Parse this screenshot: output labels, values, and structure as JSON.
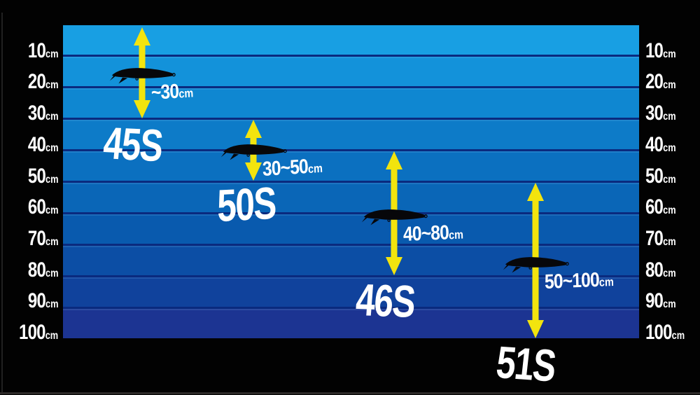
{
  "chart_data": {
    "type": "bar",
    "subtype": "vertical-depth-range-diagram",
    "title": "",
    "unit": "cm",
    "depth_axis": {
      "side": "both",
      "ticks": [
        "10",
        "20",
        "30",
        "40",
        "50",
        "60",
        "70",
        "80",
        "90",
        "100"
      ],
      "tick_suffix": "cm",
      "min_cm": 0,
      "max_cm": 100
    },
    "series": [
      {
        "model": "45S",
        "range_label": "~30",
        "min_cm": 0,
        "max_cm": 30
      },
      {
        "model": "50S",
        "range_label": "30~50",
        "min_cm": 30,
        "max_cm": 50
      },
      {
        "model": "46S",
        "range_label": "40~80",
        "min_cm": 40,
        "max_cm": 80
      },
      {
        "model": "51S",
        "range_label": "50~100",
        "min_cm": 50,
        "max_cm": 100
      }
    ],
    "grid": "horizontal-depth-bands",
    "legend": "none",
    "colors": {
      "background": "#020202",
      "text": "#FFFFFF",
      "arrow": "#F2E40E",
      "lure_silhouette": "#07070A",
      "band_divider": "#0A2A7E",
      "depth_bands": [
        "#189FE3",
        "#1392DA",
        "#0F87D1",
        "#0D7BC8",
        "#0B70C0",
        "#0A66B7",
        "#095AAE",
        "#0C4EA5",
        "#10429C",
        "#1C3492"
      ]
    }
  }
}
